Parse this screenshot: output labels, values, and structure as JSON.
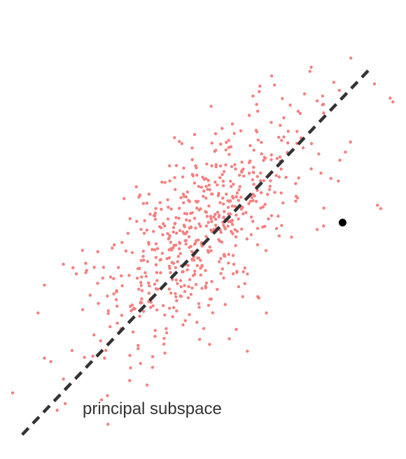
{
  "chart_data": {
    "type": "scatter",
    "title": "",
    "xlabel": "",
    "ylabel": "",
    "axes_visible": false,
    "grid": false,
    "xlim": [
      -3.2,
      3.2
    ],
    "ylim": [
      -3.3,
      3.3
    ],
    "colors": {
      "samples": "#f77f7f",
      "highlight": "#000000",
      "line": "#333333",
      "label": "#333333"
    },
    "line": {
      "label": "principal subspace",
      "style": "dashed",
      "from": [
        -2.85,
        -2.95
      ],
      "to": [
        2.64,
        2.32
      ]
    },
    "highlight_point": {
      "x": 2.2,
      "y": 0.1
    },
    "samples": {
      "count": 600,
      "mean": [
        0,
        0
      ],
      "std_along": 1.1,
      "std_across": 0.5,
      "angle_deg": 44,
      "seed": 7,
      "extra_points": [
        [
          2.0,
          3.4
        ],
        [
          2.15,
          2.0
        ],
        [
          1.9,
          1.8
        ],
        [
          1.5,
          1.7
        ],
        [
          1.6,
          1.95
        ],
        [
          1.8,
          1.85
        ],
        [
          3.2,
          2.2
        ],
        [
          2.75,
          0.35
        ],
        [
          2.8,
          0.3
        ],
        [
          1.8,
          0.0
        ],
        [
          1.9,
          0.05
        ],
        [
          -3.0,
          -2.35
        ],
        [
          -2.3,
          -2.6
        ],
        [
          -0.2,
          -3.3
        ],
        [
          -1.5,
          -2.8
        ],
        [
          -1.6,
          -2.45
        ],
        [
          -2.6,
          -1.2
        ],
        [
          -2.5,
          -0.8
        ],
        [
          -2.2,
          -0.5
        ],
        [
          -2.05,
          -0.55
        ],
        [
          -1.9,
          -0.3
        ],
        [
          -2.4,
          -1.9
        ],
        [
          -2.5,
          -1.85
        ],
        [
          -2.2,
          -2.15
        ],
        [
          0.7,
          -1.75
        ],
        [
          1.0,
          -1.2
        ]
      ]
    }
  }
}
